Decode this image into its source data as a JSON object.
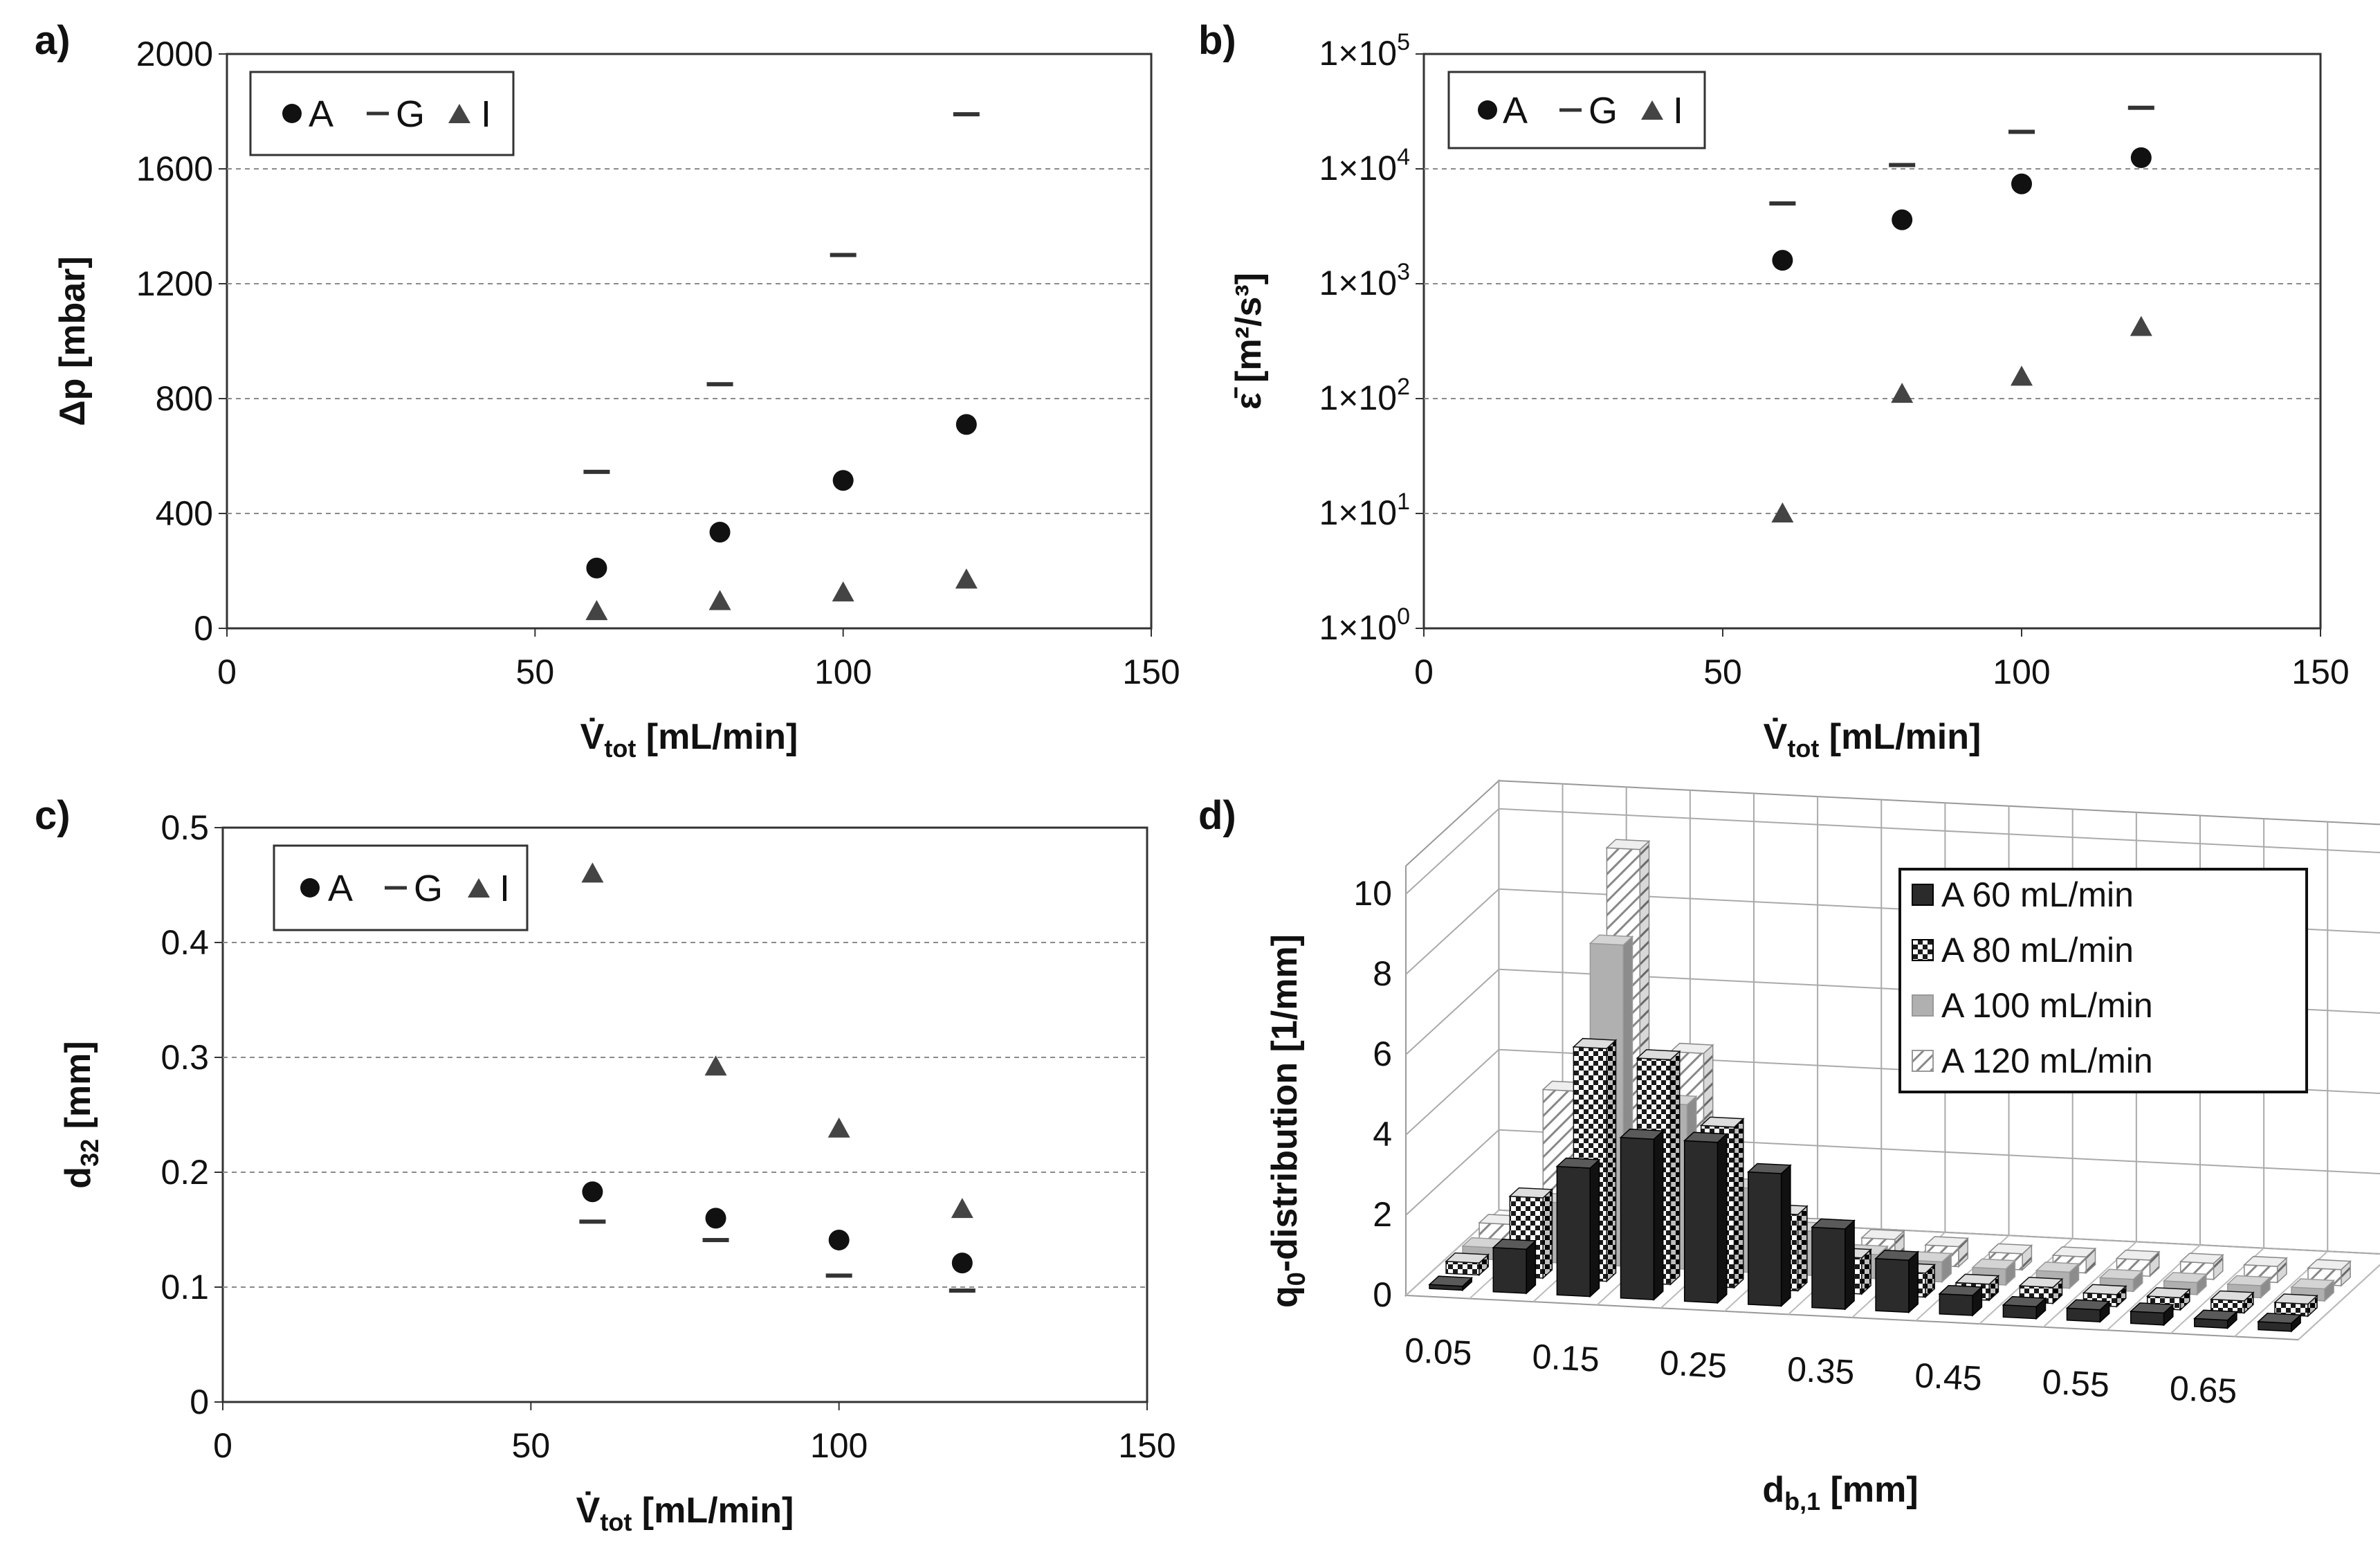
{
  "chart_data": [
    {
      "id": "a",
      "panel_label": "a)",
      "type": "scatter",
      "xlabel_main": "V̇",
      "xlabel_sub": "tot",
      "xlabel_rest": " [mL/min]",
      "ylabel": "Δp [mbar]",
      "xlim": [
        0,
        150
      ],
      "ylim": [
        0,
        2000
      ],
      "xticks": [
        "0",
        "50",
        "100",
        "150"
      ],
      "yticks": [
        "0",
        "400",
        "800",
        "1200",
        "1600",
        "2000"
      ],
      "legend": [
        "A",
        "G",
        "I"
      ],
      "x": [
        60,
        80,
        100,
        120
      ],
      "series": [
        {
          "name": "A",
          "marker": "circle",
          "values": [
            210,
            335,
            515,
            710
          ]
        },
        {
          "name": "G",
          "marker": "dash",
          "values": [
            545,
            850,
            1300,
            1790
          ]
        },
        {
          "name": "I",
          "marker": "triangle",
          "values": [
            60,
            95,
            125,
            170
          ]
        }
      ]
    },
    {
      "id": "b",
      "panel_label": "b)",
      "type": "scatter",
      "yscale": "log",
      "xlabel_main": "V̇",
      "xlabel_sub": "tot",
      "xlabel_rest": " [mL/min]",
      "ylabel": "ε̄ [m²/s³]",
      "xlim": [
        0,
        150
      ],
      "ylim": [
        1,
        100000
      ],
      "xticks": [
        "0",
        "50",
        "100",
        "150"
      ],
      "ytick_mant": "1×10",
      "yticks_exp": [
        "0",
        "1",
        "2",
        "3",
        "4",
        "5"
      ],
      "legend": [
        "A",
        "G",
        "I"
      ],
      "x": [
        60,
        80,
        100,
        120
      ],
      "series": [
        {
          "name": "A",
          "marker": "circle",
          "values": [
            1600,
            3600,
            7400,
            12500
          ]
        },
        {
          "name": "G",
          "marker": "dash",
          "values": [
            5000,
            10800,
            21000,
            34000
          ]
        },
        {
          "name": "I",
          "marker": "triangle",
          "values": [
            10,
            110,
            155,
            420
          ]
        }
      ]
    },
    {
      "id": "c",
      "panel_label": "c)",
      "type": "scatter",
      "xlabel_main": "V̇",
      "xlabel_sub": "tot",
      "xlabel_rest": " [mL/min]",
      "ylabel_main": "d",
      "ylabel_sub": "32",
      "ylabel_rest": " [mm]",
      "xlim": [
        0,
        150
      ],
      "ylim": [
        0,
        0.5
      ],
      "xticks": [
        "0",
        "50",
        "100",
        "150"
      ],
      "yticks": [
        "0",
        "0.1",
        "0.2",
        "0.3",
        "0.4",
        "0.5"
      ],
      "legend": [
        "A",
        "G",
        "I"
      ],
      "x": [
        60,
        80,
        100,
        120
      ],
      "series": [
        {
          "name": "A",
          "marker": "circle",
          "values": [
            0.183,
            0.16,
            0.141,
            0.121
          ]
        },
        {
          "name": "G",
          "marker": "dash",
          "values": [
            0.157,
            0.141,
            0.11,
            0.097
          ]
        },
        {
          "name": "I",
          "marker": "triangle",
          "values": [
            0.46,
            0.292,
            0.238,
            0.168
          ]
        }
      ]
    },
    {
      "id": "d",
      "panel_label": "d)",
      "type": "bar",
      "projection": "3d",
      "ylabel_main": "q",
      "ylabel_sub": "0",
      "ylabel_rest": "-distribution  [1/mm]",
      "xlabel_main": "d",
      "xlabel_sub": "b,1",
      "xlabel_rest": " [mm]",
      "zlim": [
        0,
        10
      ],
      "zticks": [
        "0",
        "2",
        "4",
        "6",
        "8",
        "10"
      ],
      "categories": [
        "0.05",
        "0.1",
        "0.15",
        "0.2",
        "0.25",
        "0.3",
        "0.35",
        "0.4",
        "0.45",
        "0.5",
        "0.55",
        "0.6",
        "0.65",
        "0.7"
      ],
      "xtick_labels": [
        "0.05",
        "0.15",
        "0.25",
        "0.35",
        "0.45",
        "0.55",
        "0.65"
      ],
      "series": [
        {
          "name": "A 60 mL/min",
          "pattern": "dark",
          "values": [
            0.1,
            1.1,
            3.2,
            4.0,
            4.0,
            3.3,
            2.0,
            1.3,
            0.5,
            0.3,
            0.3,
            0.3,
            0.2,
            0.2
          ]
        },
        {
          "name": "A 80 mL/min",
          "pattern": "checker",
          "values": [
            0.3,
            2.0,
            5.8,
            5.6,
            4.0,
            1.9,
            0.9,
            0.6,
            0.4,
            0.4,
            0.3,
            0.3,
            0.3,
            0.3
          ]
        },
        {
          "name": "A 100 mL/min",
          "pattern": "light",
          "values": [
            0.3,
            1.5,
            8.0,
            4.1,
            2.1,
            1.1,
            0.6,
            0.5,
            0.4,
            0.4,
            0.3,
            0.3,
            0.3,
            0.3
          ]
        },
        {
          "name": "A 120 mL/min",
          "pattern": "hatch",
          "values": [
            0.5,
            3.9,
            10.0,
            5.0,
            1.7,
            0.8,
            0.6,
            0.5,
            0.4,
            0.4,
            0.4,
            0.4,
            0.4,
            0.4
          ]
        }
      ]
    }
  ]
}
